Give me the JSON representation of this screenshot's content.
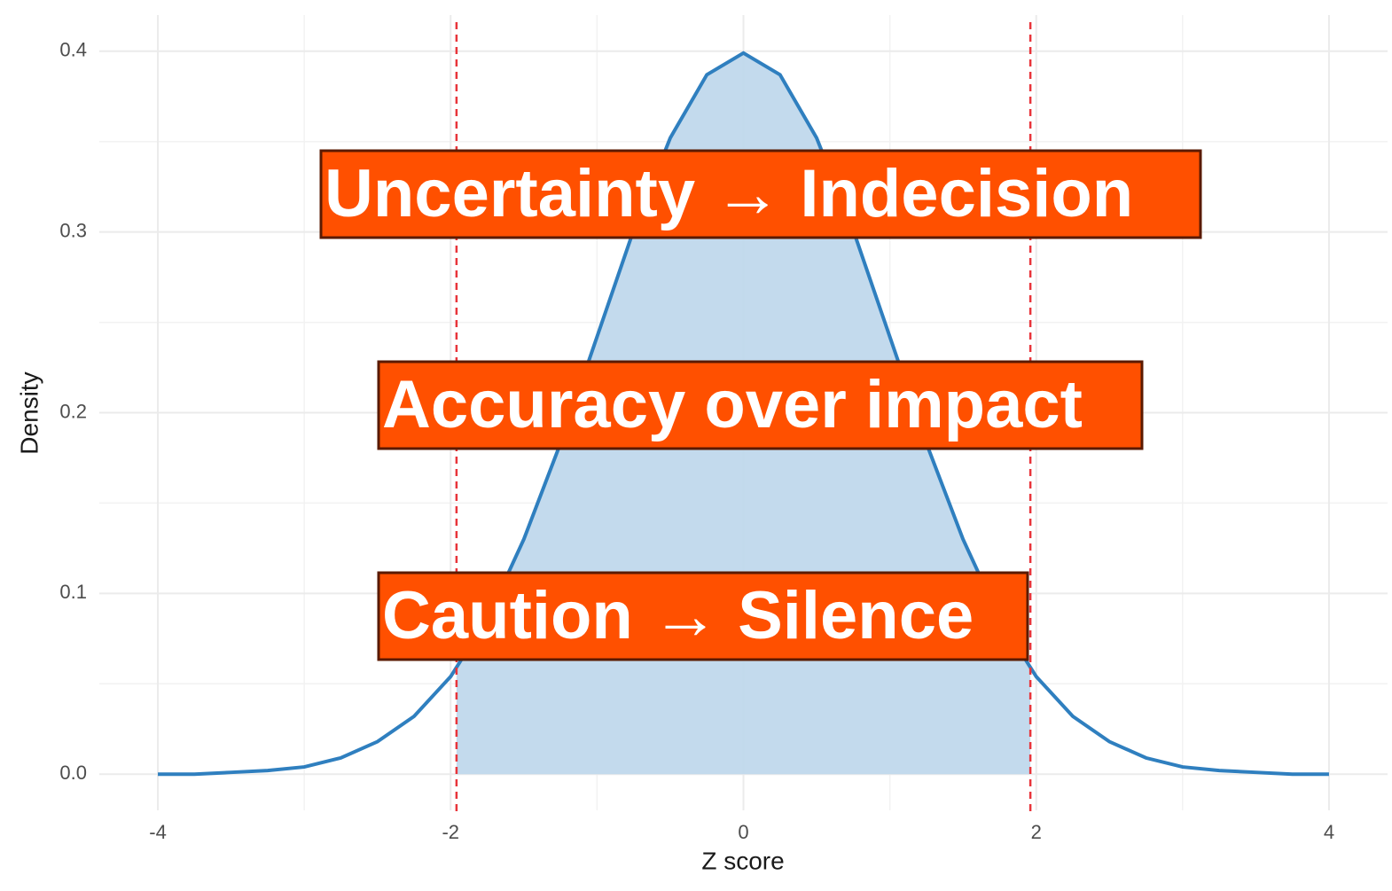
{
  "chart_data": {
    "type": "area",
    "x_label": "Z score",
    "y_label": "Density",
    "xlim": [
      -4.4,
      4.4
    ],
    "ylim": [
      -0.02,
      0.42
    ],
    "xticks": [
      -4,
      -2,
      0,
      2,
      4
    ],
    "yticks": [
      {
        "value": 0,
        "label": "0.0"
      },
      0.1,
      0.2,
      0.3,
      0.4
    ],
    "minor_xticks": [
      -3,
      -1,
      1,
      3
    ],
    "minor_yticks": [
      0.05,
      0.15,
      0.25,
      0.35
    ],
    "grid": true,
    "series": [
      {
        "color": "#2f7fbf",
        "x": [
          -4,
          -3.75,
          -3.5,
          -3.25,
          -3,
          -2.75,
          -2.5,
          -2.25,
          -2,
          -1.75,
          -1.5,
          -1.25,
          -1,
          -0.75,
          -0.5,
          -0.25,
          0,
          0.25,
          0.5,
          0.75,
          1,
          1.25,
          1.5,
          1.75,
          2,
          2.25,
          2.5,
          2.75,
          3,
          3.25,
          3.5,
          3.75,
          4
        ],
        "values": [
          0.0,
          0.0,
          0.001,
          0.002,
          0.004,
          0.009,
          0.018,
          0.032,
          0.054,
          0.086,
          0.13,
          0.183,
          0.242,
          0.301,
          0.352,
          0.387,
          0.399,
          0.387,
          0.352,
          0.301,
          0.242,
          0.183,
          0.13,
          0.086,
          0.054,
          0.032,
          0.018,
          0.009,
          0.004,
          0.002,
          0.001,
          0.0,
          0.0
        ]
      }
    ],
    "shaded": {
      "color": "#c0d8ec",
      "x": [
        -1.96,
        -1.75,
        -1.5,
        -1.25,
        -1,
        -0.75,
        -0.5,
        -0.25,
        0,
        0.25,
        0.5,
        0.75,
        1,
        1.25,
        1.5,
        1.75,
        1.96
      ],
      "values": [
        0.058,
        0.086,
        0.13,
        0.183,
        0.242,
        0.301,
        0.352,
        0.387,
        0.399,
        0.387,
        0.352,
        0.301,
        0.242,
        0.183,
        0.13,
        0.086,
        0.058
      ]
    },
    "vlines": [
      -1.96,
      1.96
    ],
    "vline_color": "#e8343a",
    "annotations": [
      "Uncertainty → Indecision",
      "Accuracy over impact",
      "Caution → Silence"
    ],
    "annotation_color": "#ff5000"
  }
}
